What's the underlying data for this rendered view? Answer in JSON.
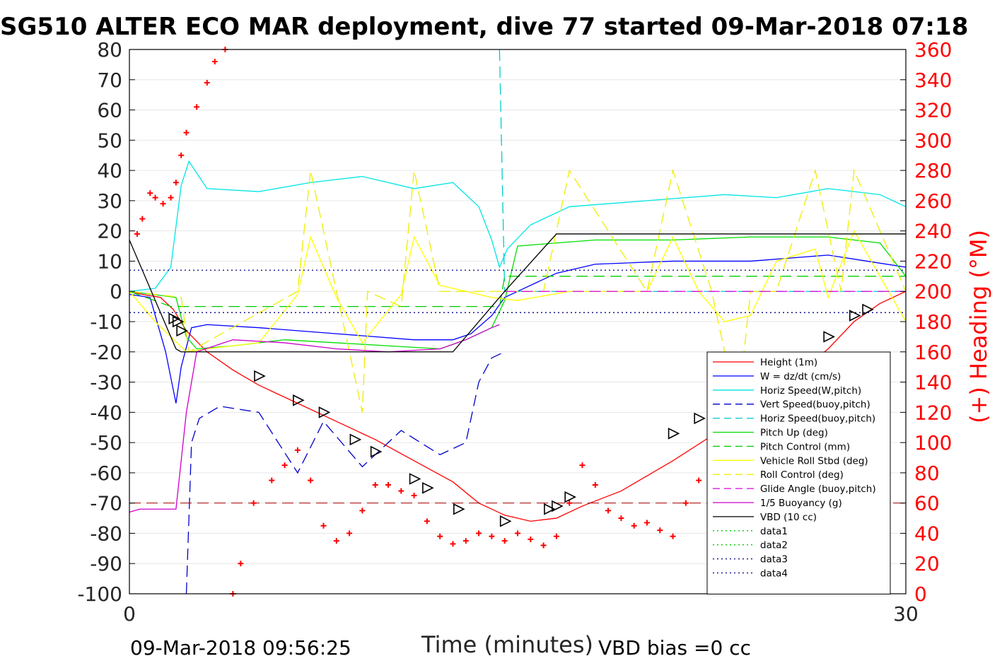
{
  "chart_data": {
    "type": "line",
    "title": "SG510 ALTER ECO MAR deployment, dive 77 started 09-Mar-2018 07:18",
    "xlabel": "Time (minutes)",
    "ylabel_right": "(+) Heading (°M)",
    "xlim": [
      0,
      30
    ],
    "ylim": [
      -100,
      80
    ],
    "ylim_right": [
      0,
      360
    ],
    "x_ticks": [
      "0",
      "30"
    ],
    "y_ticks": [
      "80",
      "70",
      "60",
      "50",
      "40",
      "30",
      "20",
      "10",
      "0",
      "-10",
      "-20",
      "-30",
      "-40",
      "-50",
      "-60",
      "-70",
      "-80",
      "-90",
      "-100"
    ],
    "y_ticks_right": [
      "360",
      "340",
      "320",
      "300",
      "280",
      "260",
      "240",
      "220",
      "200",
      "180",
      "160",
      "140",
      "120",
      "100",
      "80",
      "60",
      "40",
      "20",
      "0"
    ],
    "grid": true,
    "legend_position": "lower-right",
    "footer_left": "09-Mar-2018 09:56:25",
    "footer_right": "VBD bias =0 cc",
    "series": [
      {
        "name": "Height (1m)",
        "color": "#ff0000",
        "style": "solid",
        "x": [
          0,
          0.5,
          1.2,
          1.7,
          2.2,
          3.0,
          4.0,
          5.0,
          6.5,
          8.0,
          9.5,
          11.0,
          12.5,
          13.5,
          14.5,
          15.5,
          16.5,
          17.5,
          19.0,
          21.0,
          23.0,
          25.0,
          27.0,
          28.0,
          29.0,
          30.0
        ],
        "y": [
          0,
          -1,
          -2,
          -6,
          -13,
          -20,
          -26,
          -31,
          -37,
          -43,
          -49,
          -56,
          -63,
          -70,
          -74,
          -76,
          -75,
          -71,
          -66,
          -56,
          -45,
          -33,
          -19,
          -10,
          -4,
          0
        ]
      },
      {
        "name": "W = dz/dt (cm/s)",
        "color": "#0000ff",
        "style": "solid",
        "x": [
          0,
          0.8,
          1.4,
          1.8,
          2.0,
          2.4,
          3.0,
          5.0,
          8.0,
          11.0,
          12.5,
          13.2,
          14.0,
          14.5,
          15.0,
          16.5,
          18.0,
          21.0,
          24.0,
          27.0,
          28.5,
          30.0
        ],
        "y": [
          -1,
          -2,
          -20,
          -37,
          -25,
          -12,
          -11,
          -12,
          -14,
          -16,
          -16,
          -14,
          -8,
          -2,
          0,
          6,
          9,
          10,
          10,
          12,
          10,
          8
        ]
      },
      {
        "name": "Horiz Speed(W,pitch)",
        "color": "#00e5e5",
        "style": "solid",
        "x": [
          0,
          1.0,
          1.6,
          2.0,
          2.3,
          3.0,
          5.0,
          7.0,
          9.0,
          11.0,
          12.5,
          13.5,
          14.0,
          14.3,
          14.6,
          15.5,
          17.0,
          20.0,
          23.0,
          25.0,
          27.0,
          29.0,
          30.0
        ],
        "y": [
          0,
          1,
          8,
          35,
          43,
          34,
          33,
          36,
          38,
          34,
          36,
          28,
          17,
          8,
          14,
          22,
          28,
          30,
          32,
          31,
          34,
          32,
          28
        ]
      },
      {
        "name": "Vert Speed(buoy,pitch)",
        "color": "#0000cc",
        "style": "dashed",
        "x": [
          2.2,
          2.4,
          2.7,
          3.5,
          5.0,
          6.5,
          7.5,
          9.0,
          10.5,
          12.0,
          13.0,
          13.5,
          14.0,
          14.5
        ],
        "y": [
          -100,
          -50,
          -42,
          -38,
          -40,
          -60,
          -43,
          -58,
          -46,
          -54,
          -50,
          -30,
          -22,
          -20
        ]
      },
      {
        "name": "Horiz Speed(buoy,pitch)",
        "color": "#00cccc",
        "style": "dashed",
        "x": [
          14.3,
          14.4,
          14.5,
          14.6,
          30.0
        ],
        "y": [
          80,
          40,
          0,
          0,
          0
        ]
      },
      {
        "name": "Pitch Up (deg)",
        "color": "#00dd00",
        "style": "solid",
        "x": [
          0,
          1.8,
          2.2,
          2.6,
          4.0,
          6.0,
          8.0,
          10.0,
          12.0,
          13.0,
          14.0,
          14.5,
          15.0,
          16.5,
          18.0,
          21.0,
          24.0,
          27.0,
          29.0,
          30.0
        ],
        "y": [
          0,
          -2,
          -15,
          -19,
          -18,
          -16,
          -17,
          -18,
          -19,
          -16,
          -12,
          -3,
          15,
          16,
          17,
          17,
          18,
          18,
          16,
          5
        ]
      },
      {
        "name": "Pitch Control (mm)",
        "color": "#00cc00",
        "style": "dashed",
        "x": [
          0,
          1.6,
          2.0,
          14.3,
          14.5,
          30.0
        ],
        "y": [
          0,
          -5,
          -5,
          -5,
          5,
          5
        ]
      },
      {
        "name": "Vehicle Roll Stbd (deg)",
        "color": "#ffff00",
        "style": "solid",
        "x": [
          0,
          1.0,
          2.2,
          3.0,
          5.0,
          6.5,
          7.0,
          8.0,
          9.0,
          10.5,
          11.0,
          12.0,
          14.0,
          15.0,
          17.0,
          20.0,
          21.0,
          22.0,
          23.0,
          24.0,
          25.0,
          26.5,
          27.0,
          28.0,
          30.0
        ],
        "y": [
          0,
          -10,
          -20,
          -19,
          -17,
          -1,
          18,
          -2,
          -17,
          -1,
          18,
          2,
          -2,
          -3,
          0,
          0,
          18,
          0,
          -10,
          -8,
          10,
          14,
          -2,
          20,
          -10
        ]
      },
      {
        "name": "Roll Control (deg)",
        "color": "#eeee00",
        "style": "dashed",
        "x": [
          0,
          2.0,
          2.3,
          6.5,
          7.0,
          8.0,
          9.0,
          9.2,
          10.5,
          11.0,
          12.0,
          14.0,
          16.0,
          17.0,
          20.0,
          21.0,
          22.5,
          23.5,
          24.0,
          25.0,
          26.5,
          27.5,
          28.0,
          30.0
        ],
        "y": [
          0,
          -2,
          -20,
          0,
          40,
          0,
          -40,
          0,
          -5,
          40,
          0,
          0,
          0,
          40,
          0,
          40,
          0,
          -40,
          0,
          0,
          40,
          0,
          40,
          0
        ]
      },
      {
        "name": "Glide Angle (buoy,pitch)",
        "color": "#dd00dd",
        "style": "dashed",
        "x": [
          14.5,
          30.0
        ],
        "y": [
          0,
          0
        ]
      },
      {
        "name": "1/5 Buoyancy (g)",
        "color": "#cc00cc",
        "style": "solid",
        "x": [
          0,
          0.4,
          1.8,
          2.2,
          2.6,
          4.0,
          6.0,
          8.0,
          10.0,
          12.0,
          13.0,
          14.0,
          14.3
        ],
        "y": [
          -73,
          -72,
          -72,
          -40,
          -20,
          -16,
          -17,
          -19,
          -20,
          -19,
          -16,
          -12,
          -11
        ]
      },
      {
        "name": "VBD (10 cc)",
        "color": "#000000",
        "style": "solid",
        "x": [
          0,
          1.8,
          2.0,
          12.5,
          14.5,
          16.5,
          30.0
        ],
        "y": [
          17,
          -19,
          -20,
          -20,
          0,
          19,
          19
        ]
      },
      {
        "name": "data1",
        "color": "#00cc00",
        "style": "dotted",
        "x": [],
        "y": []
      },
      {
        "name": "data2",
        "color": "#00cc00",
        "style": "dotted",
        "x": [],
        "y": []
      },
      {
        "name": "data3",
        "color": "#000080",
        "style": "dotted",
        "x": [
          0,
          30.0
        ],
        "y": [
          7,
          7
        ]
      },
      {
        "name": "data4",
        "color": "#000080",
        "style": "dotted",
        "x": [
          0,
          30.0
        ],
        "y": [
          -7,
          -7
        ]
      }
    ],
    "heading_series": {
      "color": "#ff0000",
      "axis": "right",
      "x": [
        0.3,
        0.5,
        0.8,
        1.0,
        1.3,
        1.6,
        1.8,
        2.0,
        2.2,
        2.6,
        3.0,
        3.3,
        3.7,
        4.0,
        4.3,
        4.8,
        5.5,
        6.0,
        6.5,
        7.0,
        7.5,
        8.0,
        8.5,
        9.0,
        9.5,
        10.0,
        10.5,
        11.0,
        11.5,
        12.0,
        12.5,
        13.0,
        13.5,
        14.0,
        14.5,
        15.0,
        15.5,
        16.0,
        16.5,
        17.0,
        17.5,
        18.0,
        18.5,
        19.0,
        19.5,
        20.0,
        20.5,
        21.0,
        21.5,
        22.0,
        22.5,
        23.0,
        23.5,
        24.0,
        24.5,
        25.0,
        25.5,
        26.0,
        26.5,
        27.0,
        27.5,
        28.0,
        29.0
      ],
      "y": [
        238,
        248,
        265,
        262,
        258,
        262,
        272,
        290,
        305,
        322,
        338,
        352,
        360,
        0,
        20,
        60,
        75,
        85,
        95,
        75,
        45,
        35,
        40,
        55,
        72,
        72,
        68,
        65,
        48,
        38,
        33,
        35,
        40,
        38,
        35,
        40,
        36,
        32,
        38,
        60,
        85,
        72,
        55,
        50,
        45,
        47,
        42,
        38,
        60,
        75,
        78,
        70,
        50,
        38,
        30,
        28,
        22,
        25,
        55,
        72,
        75,
        78,
        85
      ]
    },
    "heading_reference": {
      "color": "#aa0000",
      "style": "dashed",
      "y": 60
    },
    "height_markers": {
      "x": [
        1.7,
        1.85,
        2.0,
        5.0,
        6.5,
        7.5,
        8.7,
        9.5,
        11.0,
        11.5,
        12.7,
        14.5,
        16.2,
        16.5,
        17.0,
        21.0,
        22.0,
        23.5,
        24.0,
        25.5,
        27.0,
        28.0,
        28.5
      ],
      "y": [
        -9,
        -10,
        -13,
        -28,
        -36,
        -40,
        -49,
        -53,
        -62,
        -65,
        -72,
        -76,
        -72,
        -71,
        -68,
        -47,
        -42,
        -34,
        -31,
        -23,
        -15,
        -8,
        -6
      ]
    }
  }
}
